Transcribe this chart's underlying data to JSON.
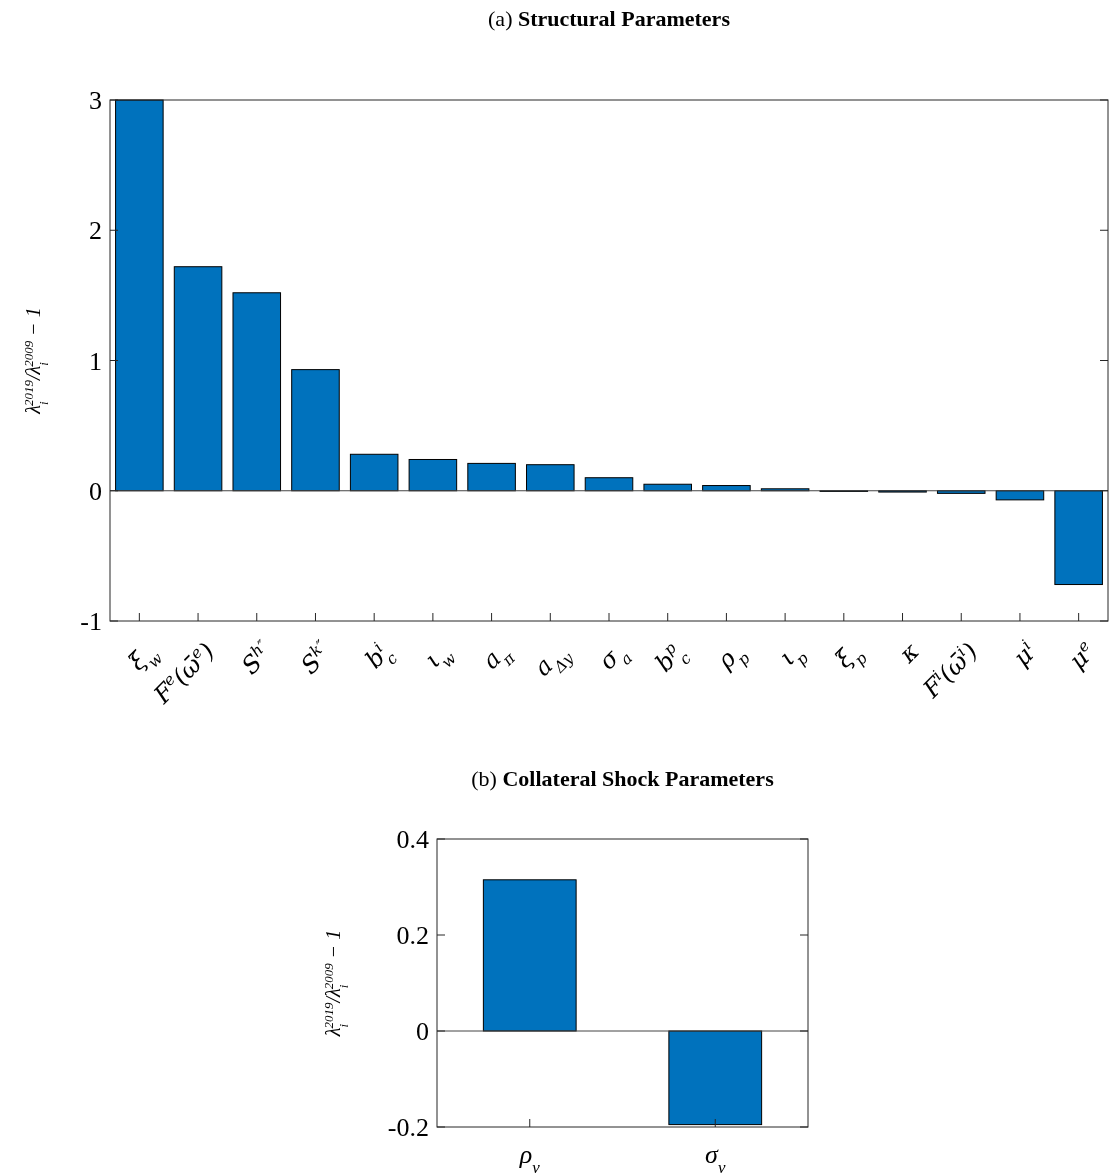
{
  "chart_data": [
    {
      "type": "bar",
      "title": "(a) Structural Parameters",
      "ylabel": "λ$_{i}$$^{2019}$/λ$_{i}$$^{2009}$ − 1",
      "categories": [
        "ξ$_{w}$",
        "F$^{e}$(ω̄$^{e}$)",
        "S$^{h″}$",
        "S$^{k″}$",
        "b$^{i}$$_{c}$",
        "ι$_{w}$",
        "a$_{π}$",
        "a$_{Δy}$",
        "σ$_{a}$",
        "b$^{p}$$_{c}$",
        "ρ$_{p}$",
        "ι$_{p}$",
        "ξ$_{p}$",
        "κ",
        "F$^{i}$(ω̄$^{i}$)",
        "μ$^{i}$",
        "μ$^{e}$"
      ],
      "values": [
        3.0,
        1.72,
        1.52,
        0.93,
        0.28,
        0.24,
        0.21,
        0.2,
        0.1,
        0.05,
        0.04,
        0.015,
        -0.005,
        -0.01,
        -0.02,
        -0.07,
        -0.72
      ],
      "color": "#0072bd",
      "ylim": [
        -1,
        3
      ],
      "yticks": [
        {
          "value": -1,
          "label": "-1"
        },
        0,
        1,
        2,
        3
      ]
    },
    {
      "type": "bar",
      "title": "(b) Collateral Shock Parameters",
      "ylabel": "λ$_{i}$$^{2019}$/λ$_{i}$$^{2009}$ − 1",
      "categories": [
        "ρ$_{ν}$",
        "σ$_{ν}$"
      ],
      "values": [
        0.315,
        -0.195
      ],
      "color": "#0072bd",
      "ylim": [
        -0.2,
        0.4
      ],
      "yticks": [
        {
          "value": -0.2,
          "label": "-0.2"
        },
        0,
        0.2,
        0.4
      ]
    }
  ]
}
